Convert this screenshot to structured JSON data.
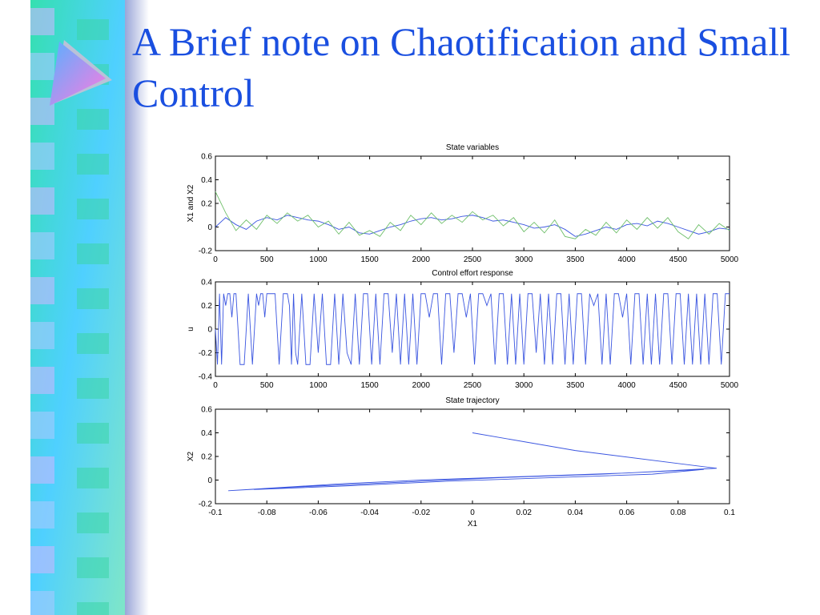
{
  "slide": {
    "title": "A Brief note on Chaotification and Small Control",
    "decoration": "arrow-bullet-icon",
    "colors": {
      "title": "#1a4fe0",
      "series_blue": "#3a55e0",
      "series_green": "#6fbf6a"
    }
  },
  "chart_data": [
    {
      "type": "line",
      "title": "State variables",
      "xlabel": "",
      "ylabel": "X1 and X2",
      "xlim": [
        0,
        5000
      ],
      "ylim": [
        -0.2,
        0.6
      ],
      "xticks": [
        0,
        500,
        1000,
        1500,
        2000,
        2500,
        3000,
        3500,
        4000,
        4500,
        5000
      ],
      "yticks": [
        -0.2,
        0,
        0.2,
        0.4,
        0.6
      ],
      "grid": false,
      "x": [
        0,
        100,
        200,
        300,
        400,
        500,
        600,
        700,
        800,
        900,
        1000,
        1100,
        1200,
        1300,
        1400,
        1500,
        1600,
        1700,
        1800,
        1900,
        2000,
        2100,
        2200,
        2300,
        2400,
        2500,
        2600,
        2700,
        2800,
        2900,
        3000,
        3100,
        3200,
        3300,
        3400,
        3500,
        3600,
        3700,
        3800,
        3900,
        4000,
        4100,
        4200,
        4300,
        4400,
        4500,
        4600,
        4700,
        4800,
        4900,
        5000
      ],
      "series": [
        {
          "color": "#3a55e0",
          "values": [
            0.0,
            0.08,
            0.02,
            -0.02,
            0.05,
            0.08,
            0.06,
            0.1,
            0.08,
            0.06,
            0.05,
            0.02,
            -0.02,
            0.0,
            -0.05,
            -0.06,
            -0.03,
            0.0,
            0.02,
            0.05,
            0.07,
            0.08,
            0.06,
            0.07,
            0.09,
            0.1,
            0.08,
            0.05,
            0.06,
            0.04,
            0.02,
            -0.01,
            0.0,
            0.02,
            -0.02,
            -0.08,
            -0.06,
            -0.03,
            0.0,
            -0.02,
            0.02,
            0.03,
            0.01,
            0.05,
            0.03,
            0.0,
            -0.03,
            -0.06,
            -0.04,
            -0.01,
            -0.02
          ]
        },
        {
          "color": "#6fbf6a",
          "values": [
            0.3,
            0.12,
            -0.03,
            0.06,
            -0.02,
            0.1,
            0.03,
            0.12,
            0.05,
            0.1,
            0.0,
            0.05,
            -0.06,
            0.04,
            -0.07,
            -0.03,
            -0.08,
            0.04,
            -0.03,
            0.1,
            0.02,
            0.12,
            0.03,
            0.1,
            0.04,
            0.13,
            0.06,
            0.1,
            0.01,
            0.08,
            -0.04,
            0.04,
            -0.05,
            0.06,
            -0.08,
            -0.1,
            -0.02,
            -0.07,
            0.04,
            -0.05,
            0.06,
            -0.02,
            0.08,
            -0.01,
            0.08,
            -0.04,
            -0.1,
            0.02,
            -0.06,
            0.03,
            -0.03
          ]
        }
      ]
    },
    {
      "type": "line",
      "title": "Control effort response",
      "xlabel": "",
      "ylabel": "u",
      "xlim": [
        0,
        5000
      ],
      "ylim": [
        -0.4,
        0.4
      ],
      "xticks": [
        0,
        500,
        1000,
        1500,
        2000,
        2500,
        3000,
        3500,
        4000,
        4500,
        5000
      ],
      "yticks": [
        -0.4,
        -0.2,
        0,
        0.2,
        0.4
      ],
      "grid": false,
      "x": [
        0,
        20,
        40,
        60,
        80,
        100,
        120,
        140,
        160,
        180,
        200,
        240,
        280,
        320,
        360,
        400,
        420,
        440,
        460,
        480,
        500,
        540,
        580,
        620,
        660,
        700,
        720,
        740,
        760,
        780,
        800,
        840,
        880,
        920,
        960,
        1000,
        1040,
        1080,
        1120,
        1160,
        1200,
        1240,
        1280,
        1320,
        1360,
        1400,
        1440,
        1480,
        1520,
        1560,
        1600,
        1640,
        1680,
        1720,
        1760,
        1800,
        1840,
        1880,
        1920,
        1960,
        2000,
        2040,
        2080,
        2120,
        2160,
        2200,
        2240,
        2280,
        2320,
        2360,
        2400,
        2440,
        2480,
        2520,
        2560,
        2600,
        2640,
        2680,
        2720,
        2760,
        2800,
        2840,
        2880,
        2920,
        2960,
        3000,
        3040,
        3080,
        3120,
        3160,
        3200,
        3240,
        3280,
        3320,
        3360,
        3400,
        3440,
        3480,
        3520,
        3560,
        3600,
        3640,
        3680,
        3720,
        3760,
        3800,
        3840,
        3880,
        3920,
        3960,
        4000,
        4040,
        4080,
        4120,
        4160,
        4200,
        4240,
        4280,
        4320,
        4360,
        4400,
        4440,
        4480,
        4520,
        4560,
        4600,
        4640,
        4680,
        4720,
        4760,
        4800,
        4840,
        4880,
        4920,
        4960,
        5000
      ],
      "series": [
        {
          "color": "#3a55e0",
          "values": [
            0.0,
            -0.3,
            0.3,
            -0.3,
            0.3,
            0.2,
            0.3,
            0.3,
            0.1,
            0.3,
            0.3,
            -0.3,
            -0.3,
            0.3,
            -0.3,
            0.3,
            0.2,
            0.3,
            0.3,
            0.1,
            0.3,
            0.3,
            0.3,
            -0.3,
            0.3,
            0.3,
            0.2,
            -0.3,
            0.3,
            -0.2,
            -0.3,
            0.3,
            -0.3,
            -0.3,
            0.3,
            -0.2,
            0.3,
            -0.3,
            -0.3,
            0.3,
            -0.3,
            0.3,
            -0.2,
            -0.3,
            0.3,
            -0.3,
            0.3,
            0.3,
            -0.3,
            0.3,
            -0.3,
            0.3,
            0.3,
            -0.2,
            0.3,
            -0.3,
            0.3,
            -0.3,
            0.3,
            -0.3,
            0.3,
            0.3,
            0.1,
            0.3,
            0.3,
            -0.3,
            0.3,
            0.3,
            -0.2,
            0.3,
            0.3,
            0.1,
            0.3,
            -0.3,
            0.3,
            0.3,
            0.2,
            0.3,
            -0.3,
            0.3,
            0.3,
            -0.3,
            0.3,
            -0.3,
            0.3,
            -0.3,
            0.3,
            0.3,
            -0.2,
            0.3,
            -0.3,
            0.3,
            -0.3,
            0.3,
            0.3,
            -0.3,
            0.3,
            -0.3,
            0.3,
            0.3,
            -0.3,
            0.3,
            0.2,
            0.3,
            -0.3,
            0.3,
            -0.3,
            0.3,
            0.3,
            0.1,
            0.3,
            -0.3,
            0.3,
            0.3,
            -0.3,
            0.3,
            -0.3,
            0.3,
            -0.3,
            0.3,
            0.3,
            -0.3,
            0.3,
            0.3,
            -0.3,
            0.3,
            -0.3,
            0.3,
            -0.3,
            0.3,
            -0.3,
            0.3,
            0.3,
            -0.3,
            0.3,
            0.3
          ]
        }
      ]
    },
    {
      "type": "line",
      "title": "State trajectory",
      "xlabel": "X1",
      "ylabel": "X2",
      "xlim": [
        -0.1,
        0.1
      ],
      "ylim": [
        -0.2,
        0.6
      ],
      "xticks": [
        -0.1,
        -0.08,
        -0.06,
        -0.04,
        -0.02,
        0,
        0.02,
        0.04,
        0.06,
        0.08,
        0.1
      ],
      "yticks": [
        -0.2,
        0,
        0.2,
        0.4,
        0.6
      ],
      "grid": false,
      "series": [
        {
          "color": "#3a55e0",
          "x": [
            0.0,
            0.04,
            0.08,
            0.095,
            0.06,
            0.02,
            -0.02,
            -0.05,
            -0.08,
            -0.095,
            -0.07,
            -0.03,
            0.01,
            0.05,
            0.09,
            0.07,
            0.03,
            -0.01,
            -0.05,
            -0.085
          ],
          "y": [
            0.4,
            0.25,
            0.14,
            0.1,
            0.06,
            0.03,
            0.0,
            -0.03,
            -0.07,
            -0.09,
            -0.06,
            -0.02,
            0.02,
            0.05,
            0.09,
            0.05,
            0.02,
            -0.01,
            -0.05,
            -0.08
          ]
        }
      ]
    }
  ]
}
